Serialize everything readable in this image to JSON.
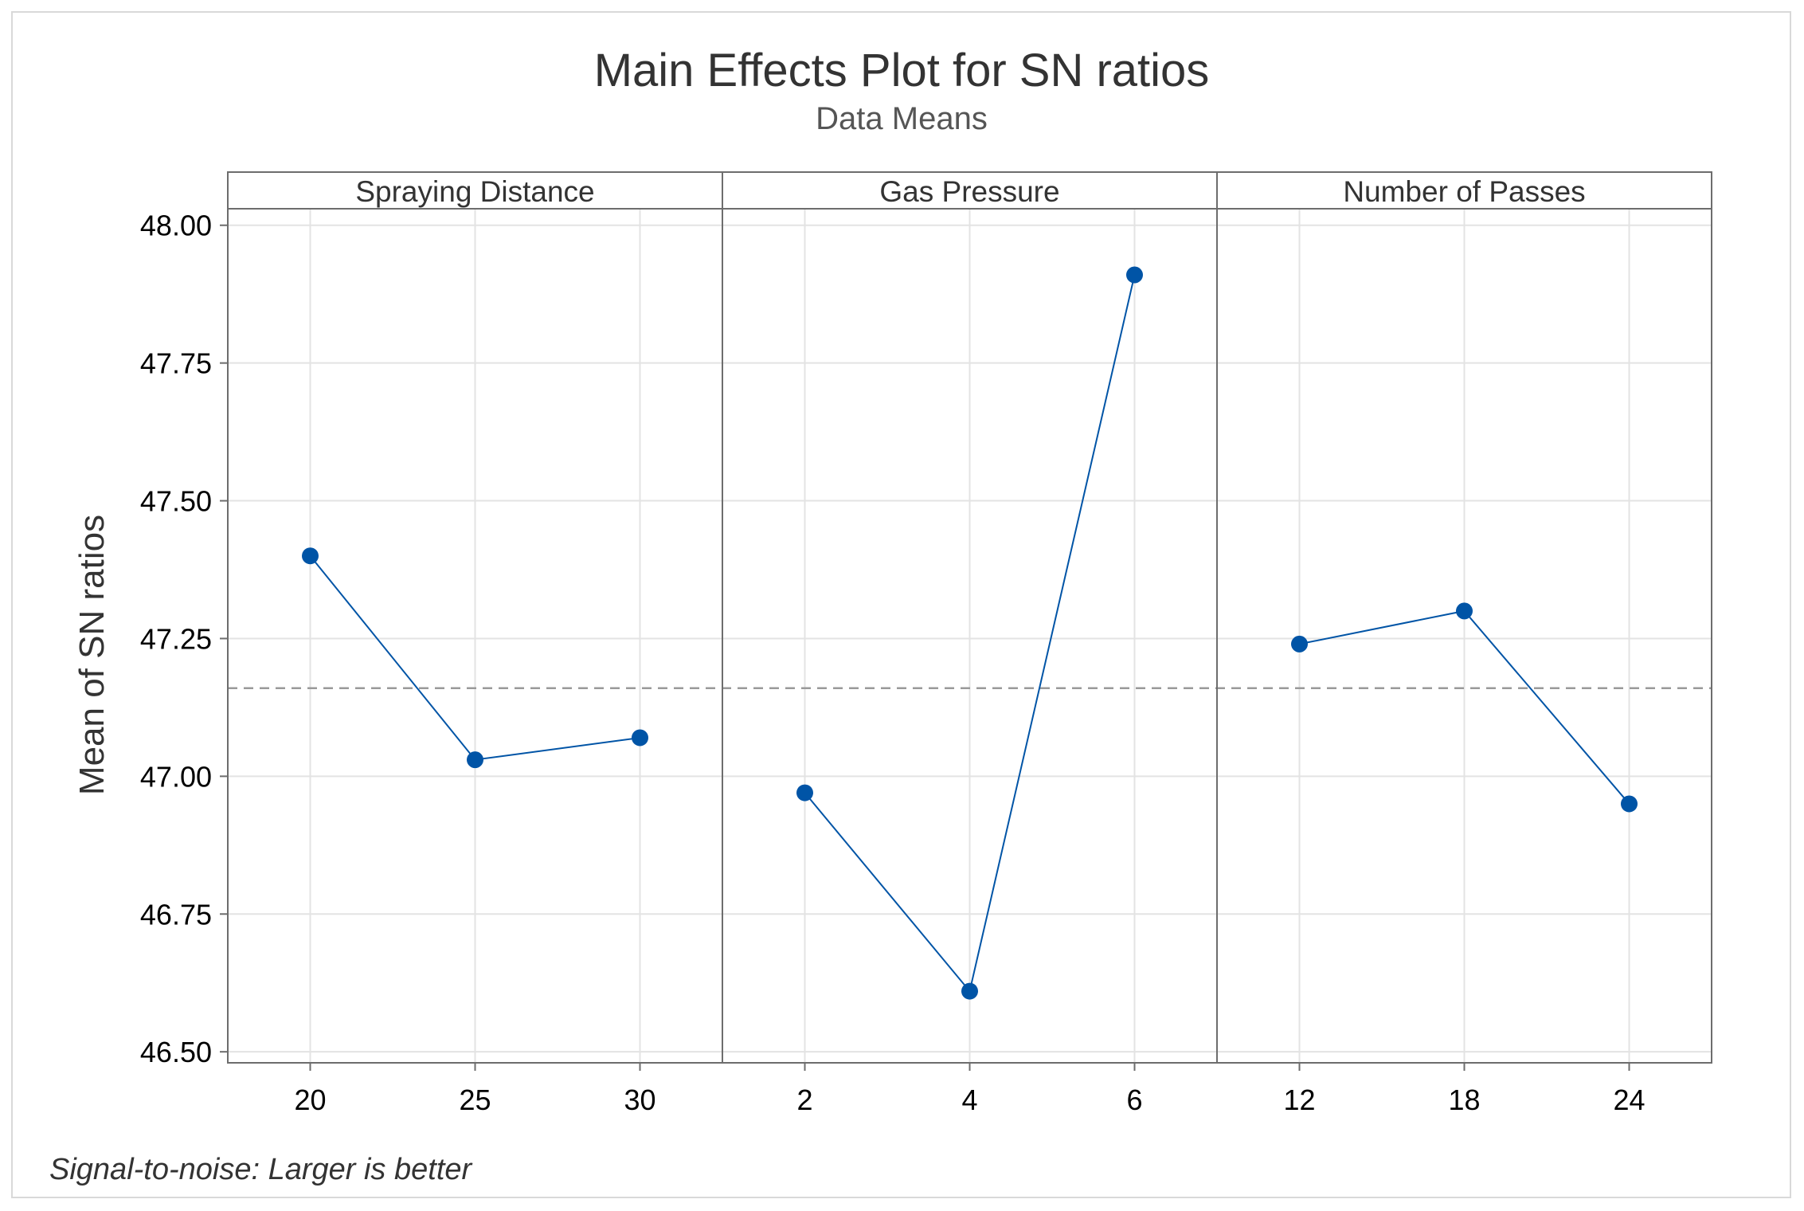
{
  "chart_data": {
    "type": "line",
    "title": "Main Effects Plot for SN ratios",
    "subtitle": "Data Means",
    "ylabel": "Mean of SN ratios",
    "footnote": "Signal-to-noise: Larger is better",
    "ylim": [
      46.48,
      48.03
    ],
    "yticks": [
      "46.50",
      "46.75",
      "47.00",
      "47.25",
      "47.50",
      "47.75",
      "48.00"
    ],
    "ytick_values": [
      46.5,
      46.75,
      47.0,
      47.25,
      47.5,
      47.75,
      48.0
    ],
    "reference_line": 47.16,
    "grid": true,
    "colors": {
      "series": "#0054a6",
      "reference": "#9a9a9a",
      "grid": "#e3e3e3",
      "frame": "#6d6d6d"
    },
    "panels": [
      {
        "name": "Spraying Distance",
        "categories": [
          "20",
          "25",
          "30"
        ],
        "values": [
          47.4,
          47.03,
          47.07
        ]
      },
      {
        "name": "Gas Pressure",
        "categories": [
          "2",
          "4",
          "6"
        ],
        "values": [
          46.97,
          46.61,
          47.91
        ]
      },
      {
        "name": "Number of Passes",
        "categories": [
          "12",
          "18",
          "24"
        ],
        "values": [
          47.24,
          47.3,
          46.95
        ]
      }
    ]
  }
}
